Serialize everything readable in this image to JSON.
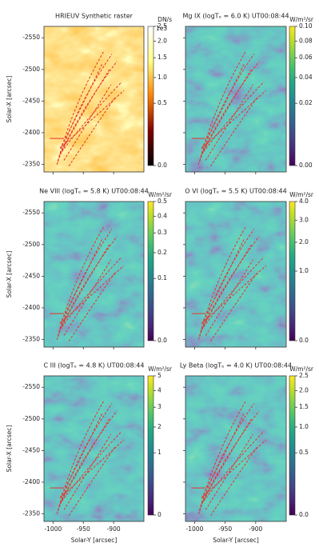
{
  "chart_data": {
    "type": "image-grid",
    "xlabel": "Solar-Y [arcsec]",
    "ylabel": "Solar-X [arcsec]",
    "xlim": [
      -1015,
      -850
    ],
    "xticks": [
      -1000,
      -950,
      -900
    ],
    "ylim": [
      -2568,
      -2338
    ],
    "yticks": [
      -2550,
      -2500,
      -2450,
      -2400,
      -2350
    ],
    "cbar_norm": "sqrt",
    "panels": [
      {
        "title": "HRIEUV Synthetic raster",
        "cmap": "afmhot",
        "cbar_label": "DN/s",
        "cbar_offset": "1e3",
        "cbar_lim": [
          0,
          2.5
        ],
        "cbar_ticks": [
          {
            "value": 0,
            "label": "0.0"
          },
          {
            "value": 0.5,
            "label": "0.5"
          },
          {
            "value": 1,
            "label": "1.0"
          },
          {
            "value": 1.5,
            "label": "1.5"
          },
          {
            "value": 2,
            "label": "2.0"
          },
          {
            "value": 2.5,
            "label": "2.5"
          }
        ]
      },
      {
        "title": "Mg IX (logTₑ = 6.0 K) UT00:08:44",
        "cmap": "viridis",
        "cbar_label": "W/m²/sr",
        "cbar_lim": [
          0,
          0.1
        ],
        "cbar_ticks": [
          {
            "value": 0,
            "label": "0.00"
          },
          {
            "value": 0.02,
            "label": "0.02"
          },
          {
            "value": 0.04,
            "label": "0.04"
          },
          {
            "value": 0.06,
            "label": "0.06"
          },
          {
            "value": 0.08,
            "label": "0.08"
          },
          {
            "value": 0.1,
            "label": "0.10"
          }
        ]
      },
      {
        "title": "Ne VIII (logTₑ = 5.8 K) UT00:08:44",
        "cmap": "viridis",
        "cbar_label": "W/m²/sr",
        "cbar_lim": [
          0,
          0.5
        ],
        "cbar_ticks": [
          {
            "value": 0,
            "label": "0.0"
          },
          0.1,
          0.2,
          0.3,
          0.4,
          0.5
        ]
      },
      {
        "title": "O VI (logTₑ = 5.5 K) UT00:08:44",
        "cmap": "viridis",
        "cbar_label": "W/m²/sr",
        "cbar_lim": [
          0,
          4
        ],
        "cbar_ticks": [
          {
            "value": 0,
            "label": "0.0"
          },
          {
            "value": 1,
            "label": "1.0"
          },
          {
            "value": 2,
            "label": "2.0"
          },
          {
            "value": 3,
            "label": "3.0"
          },
          {
            "value": 4,
            "label": "4.0"
          }
        ]
      },
      {
        "title": "C III (logTₑ = 4.8 K) UT00:08:44",
        "cmap": "viridis",
        "cbar_label": "W/m²/sr",
        "cbar_lim": [
          0,
          5
        ],
        "cbar_ticks": [
          0,
          1,
          2,
          3,
          4,
          5
        ]
      },
      {
        "title": "Ly Beta (logTₑ = 4.0 K) UT00:08:44",
        "cmap": "viridis",
        "cbar_label": "W/m²/sr",
        "cbar_lim": [
          0,
          2.5
        ],
        "cbar_ticks": [
          {
            "value": 0,
            "label": "0.0"
          },
          0.5,
          {
            "value": 1,
            "label": "1.0"
          },
          1.5,
          {
            "value": 2,
            "label": "2.0"
          },
          2.5
        ]
      }
    ]
  }
}
